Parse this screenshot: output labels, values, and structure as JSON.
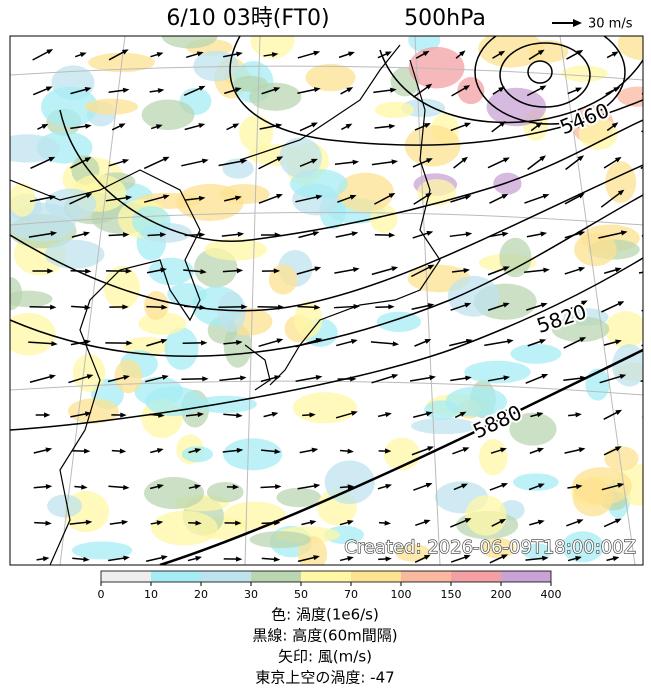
{
  "header": {
    "title": "6/10  03時(FT0)",
    "level": "500hPa",
    "wind_scale": "30 m/s"
  },
  "map": {
    "contour_labels": [
      5460,
      5820,
      5880
    ],
    "watermark": "Created: 2026-06-09T18:00:00Z"
  },
  "colorbar": {
    "ticks": [
      0,
      10,
      20,
      30,
      50,
      70,
      100,
      150,
      200,
      400
    ],
    "colors": [
      "#eeeeee",
      "#a6ecf4",
      "#bfe3ee",
      "#b9d6b0",
      "#fff7a6",
      "#fde291",
      "#f9b8a0",
      "#f3a0a4",
      "#c9a3d6"
    ]
  },
  "caption": [
    "色: 渦度(1e6/s)",
    "黒線: 高度(60m間隔)",
    "矢印: 風(m/s)",
    "東京上空の渦度: -47"
  ]
}
